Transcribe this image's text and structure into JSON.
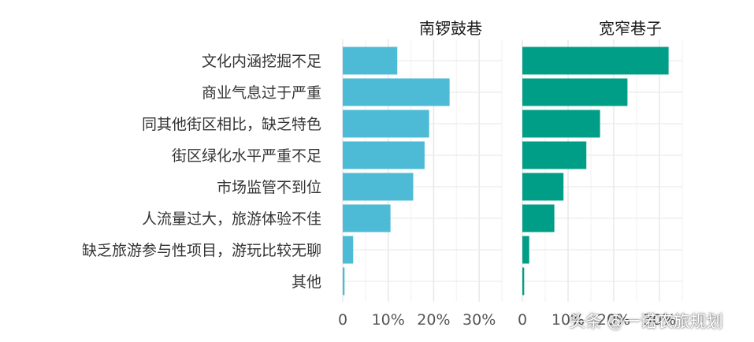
{
  "chart_data": [
    {
      "type": "bar",
      "orientation": "horizontal",
      "title": "南锣鼓巷",
      "categories": [
        "文化内涵挖掘不足",
        "商业气息过于严重",
        "同其他街区相比，缺乏特色",
        "街区绿化水平严重不足",
        "市场监管不到位",
        "人流量过大，旅游体验不佳",
        "缺乏旅游参与性项目，游玩比较无聊",
        "其他"
      ],
      "values": [
        12,
        23.5,
        19,
        18,
        15.5,
        10.5,
        2.3,
        0.4
      ],
      "unit": "%",
      "xlim": [
        0,
        35
      ],
      "xticks": [
        "0",
        "10%",
        "20%",
        "30%"
      ],
      "grid": true,
      "color": "#4dbad6"
    },
    {
      "type": "bar",
      "orientation": "horizontal",
      "title": "宽窄巷子",
      "categories": [
        "文化内涵挖掘不足",
        "商业气息过于严重",
        "同其他街区相比，缺乏特色",
        "街区绿化水平严重不足",
        "市场监管不到位",
        "人流量过大，旅游体验不佳",
        "缺乏旅游参与性项目，游玩比较无聊",
        "其他"
      ],
      "values": [
        32,
        23,
        17,
        14,
        9,
        7,
        1.5,
        0.4
      ],
      "unit": "%",
      "xlim": [
        0,
        35
      ],
      "xticks": [
        "0",
        "10%",
        "20%",
        "30%"
      ],
      "grid": true,
      "color": "#009e86"
    }
  ],
  "watermark": "头条 @一诺农旅规划"
}
